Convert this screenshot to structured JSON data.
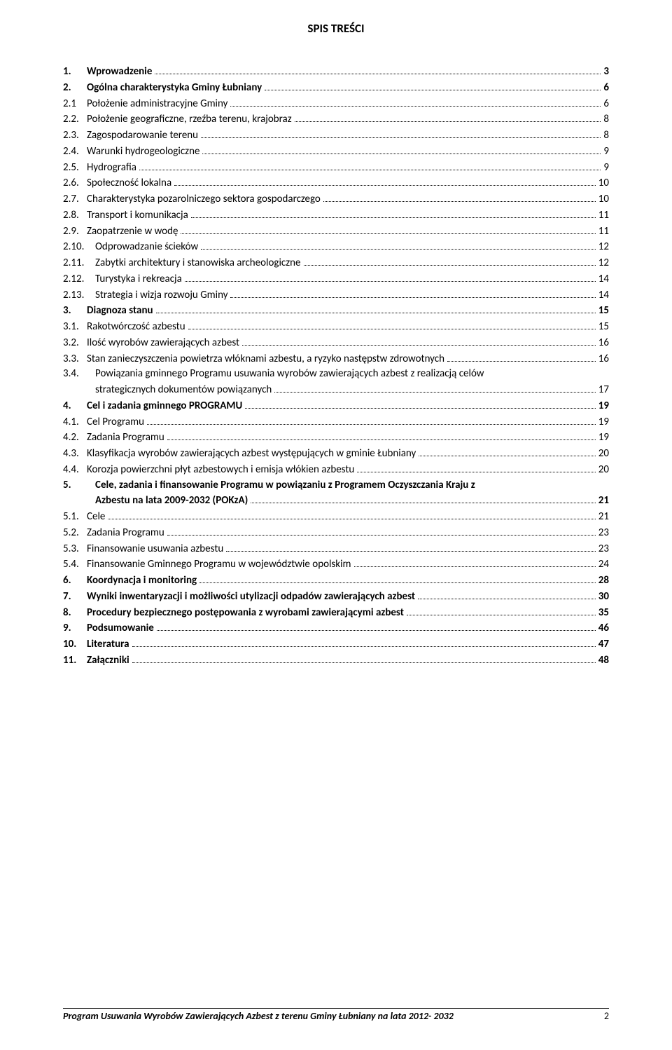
{
  "header": {
    "title": "SPIS TREŚCI"
  },
  "toc": [
    {
      "num": "1.",
      "label": "Wprowadzenie",
      "page": "3",
      "bold": true
    },
    {
      "num": "2.",
      "label": "Ogólna charakterystyka Gminy Łubniany",
      "page": "6",
      "bold": true
    },
    {
      "num": "2.1",
      "label": "Położenie administracyjne Gminy",
      "page": "6",
      "bold": false
    },
    {
      "num": "2.2.",
      "label": "Położenie geograficzne, rzeźba terenu, krajobraz",
      "page": "8",
      "bold": false
    },
    {
      "num": "2.3.",
      "label": "Zagospodarowanie terenu",
      "page": "8",
      "bold": false
    },
    {
      "num": "2.4.",
      "label": "Warunki hydrogeologiczne",
      "page": "9",
      "bold": false
    },
    {
      "num": "2.5.",
      "label": "Hydrografia",
      "page": "9",
      "bold": false
    },
    {
      "num": "2.6.",
      "label": "Społeczność lokalna",
      "page": "10",
      "bold": false
    },
    {
      "num": "2.7.",
      "label": "Charakterystyka pozarolniczego sektora gospodarczego",
      "page": "10",
      "bold": false
    },
    {
      "num": "2.8.",
      "label": "Transport i komunikacja",
      "page": "11",
      "bold": false
    },
    {
      "num": "2.9.",
      "label": "Zaopatrzenie w wodę",
      "page": "11",
      "bold": false
    },
    {
      "num": "2.10.",
      "label": "Odprowadzanie ścieków",
      "page": "12",
      "bold": false,
      "wide": true
    },
    {
      "num": "2.11.",
      "label": "Zabytki architektury i stanowiska archeologiczne",
      "page": "12",
      "bold": false,
      "wide": true
    },
    {
      "num": "2.12.",
      "label": "Turystyka i rekreacja",
      "page": "14",
      "bold": false,
      "wide": true
    },
    {
      "num": "2.13.",
      "label": "Strategia i wizja rozwoju Gminy",
      "page": "14",
      "bold": false,
      "wide": true
    },
    {
      "num": "3.",
      "label": "Diagnoza stanu",
      "page": "15",
      "bold": true
    },
    {
      "num": "3.1.",
      "label": "Rakotwórczość azbestu",
      "page": "15",
      "bold": false
    },
    {
      "num": "3.2.",
      "label": "Ilość wyrobów zawierających azbest",
      "page": "16",
      "bold": false
    },
    {
      "num": "3.3.",
      "label": "Stan zanieczyszczenia powietrza włóknami azbestu, a ryzyko następstw zdrowotnych",
      "page": "16",
      "bold": false
    },
    {
      "num": "3.4.",
      "label1": "Powiązania gminnego Programu usuwania wyrobów zawierających azbest z realizacją celów",
      "label2": "strategicznych dokumentów powiązanych",
      "page": "17",
      "bold": false,
      "multiline": true
    },
    {
      "num": "4.",
      "label": "Cel  i zadania gminnego PROGRAMU",
      "page": "19",
      "bold": true
    },
    {
      "num": "4.1.",
      "label": "Cel Programu",
      "page": "19",
      "bold": false
    },
    {
      "num": "4.2.",
      "label": "Zadania Programu",
      "page": "19",
      "bold": false
    },
    {
      "num": "4.3.",
      "label": "Klasyfikacja wyrobów zawierających azbest występujących w gminie Łubniany",
      "page": "20",
      "bold": false
    },
    {
      "num": "4.4.",
      "label": "Korozja powierzchni płyt azbestowych i emisja włókien azbestu",
      "page": "20",
      "bold": false
    },
    {
      "num": "5.",
      "label1": "Cele, zadania i finansowanie Programu  w powiązaniu z Programem Oczyszczania Kraju z",
      "label2": "Azbestu na lata 2009-2032 (POKzA)",
      "page": "21",
      "bold": true,
      "multiline": true
    },
    {
      "num": "5.1.",
      "label": "Cele",
      "page": "21",
      "bold": false
    },
    {
      "num": "5.2.",
      "label": "Zadania Programu",
      "page": "23",
      "bold": false
    },
    {
      "num": "5.3.",
      "label": "Finansowanie usuwania azbestu",
      "page": "23",
      "bold": false
    },
    {
      "num": "5.4.",
      "label": "Finansowanie Gminnego Programu w województwie opolskim",
      "page": "24",
      "bold": false
    },
    {
      "num": "6.",
      "label": "Koordynacja i monitoring",
      "page": "28",
      "bold": true
    },
    {
      "num": "7.",
      "label": "Wyniki inwentaryzacji i możliwości utylizacji odpadów zawierających azbest",
      "page": "30",
      "bold": true
    },
    {
      "num": "8.",
      "label": "Procedury bezpiecznego postępowania z wyrobami zawierającymi azbest",
      "page": "35",
      "bold": true
    },
    {
      "num": "9.",
      "label": "Podsumowanie",
      "page": "46",
      "bold": true
    },
    {
      "num": "10.",
      "label": "Literatura",
      "page": "47",
      "bold": true
    },
    {
      "num": "11.",
      "label": "Załączniki",
      "page": "48",
      "bold": true
    }
  ],
  "footer": {
    "text": "Program Usuwania Wyrobów Zawierających Azbest z terenu Gminy Łubniany na lata 2012- 2032",
    "page": "2"
  }
}
